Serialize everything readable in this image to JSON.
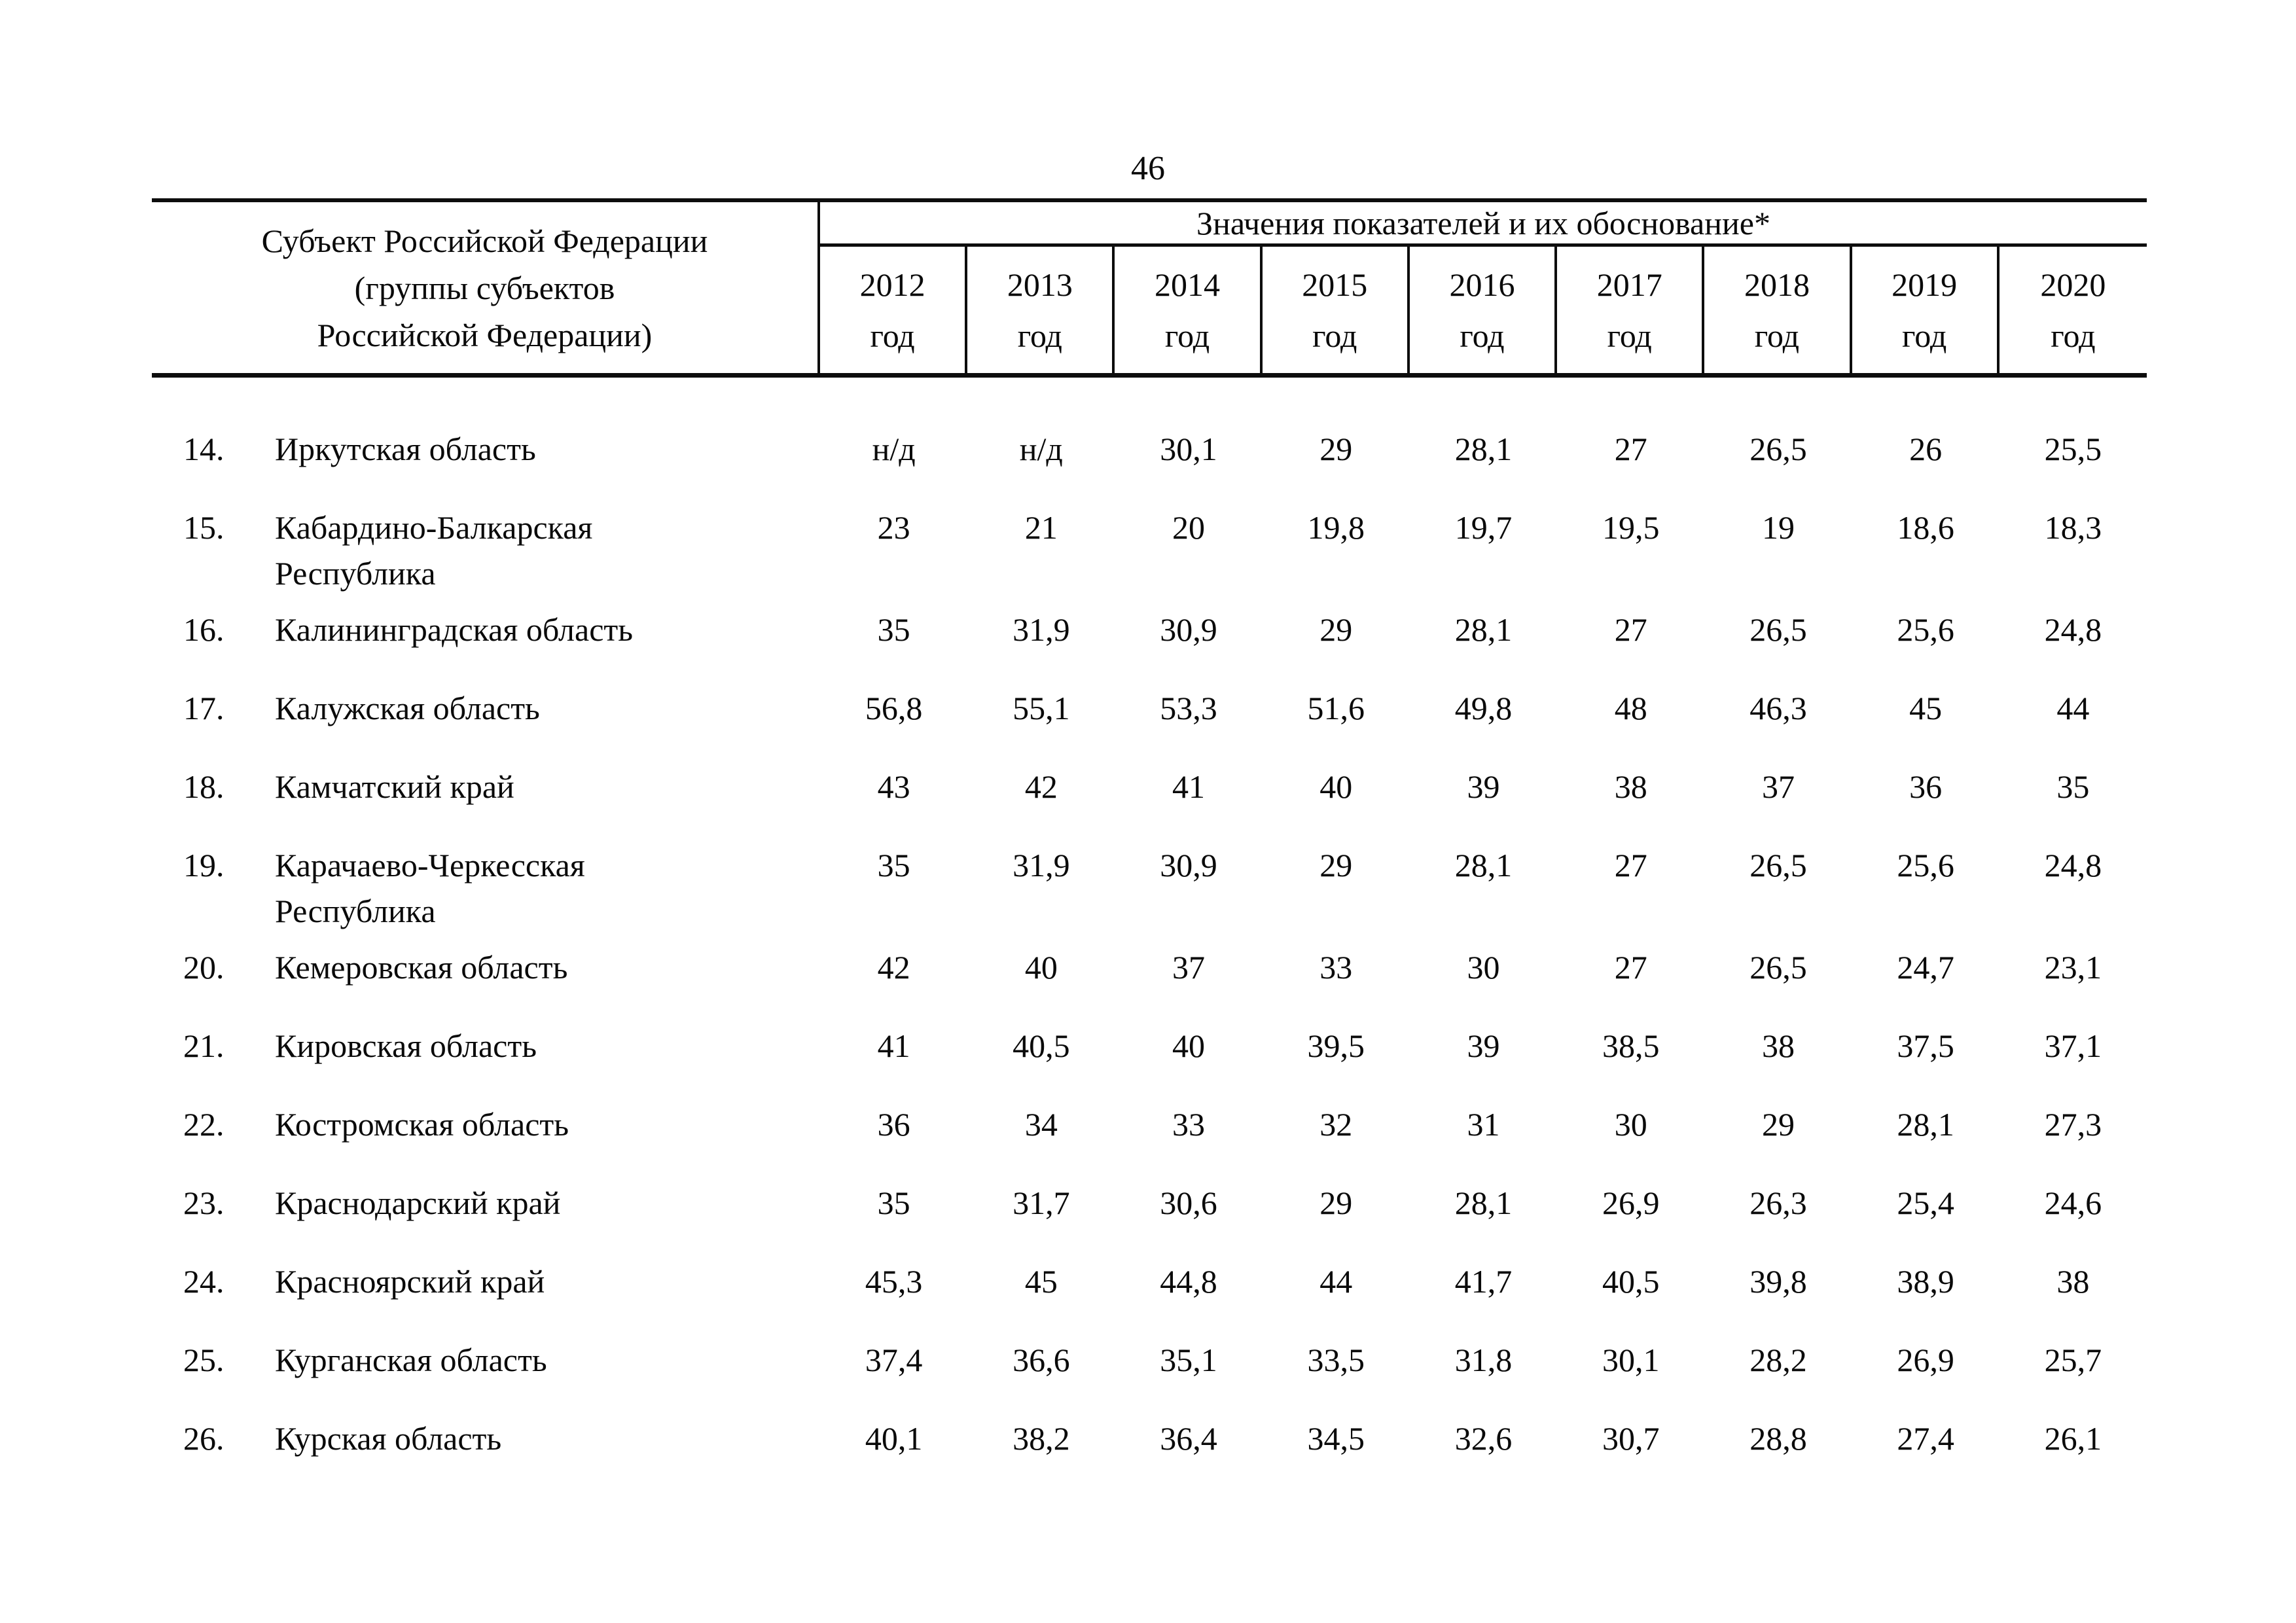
{
  "page": {
    "number": "46"
  },
  "table": {
    "subject_header_lines": [
      "Субъект Российской Федерации",
      "(группы субъектов",
      "Российской Федерации)"
    ],
    "values_header": "Значения показателей и их обоснование*",
    "columns": [
      {
        "year": "2012",
        "unit": "год"
      },
      {
        "year": "2013",
        "unit": "год"
      },
      {
        "year": "2014",
        "unit": "год"
      },
      {
        "year": "2015",
        "unit": "год"
      },
      {
        "year": "2016",
        "unit": "год"
      },
      {
        "year": "2017",
        "unit": "год"
      },
      {
        "year": "2018",
        "unit": "год"
      },
      {
        "year": "2019",
        "unit": "год"
      },
      {
        "year": "2020",
        "unit": "год"
      }
    ],
    "rows": [
      {
        "num": "14.",
        "name_lines": [
          "Иркутская область"
        ],
        "values": [
          "н/д",
          "н/д",
          "30,1",
          "29",
          "28,1",
          "27",
          "26,5",
          "26",
          "25,5"
        ]
      },
      {
        "num": "15.",
        "name_lines": [
          "Кабардино-Балкарская",
          "Республика"
        ],
        "values": [
          "23",
          "21",
          "20",
          "19,8",
          "19,7",
          "19,5",
          "19",
          "18,6",
          "18,3"
        ]
      },
      {
        "num": "16.",
        "name_lines": [
          "Калининградская область"
        ],
        "values": [
          "35",
          "31,9",
          "30,9",
          "29",
          "28,1",
          "27",
          "26,5",
          "25,6",
          "24,8"
        ]
      },
      {
        "num": "17.",
        "name_lines": [
          "Калужская область"
        ],
        "values": [
          "56,8",
          "55,1",
          "53,3",
          "51,6",
          "49,8",
          "48",
          "46,3",
          "45",
          "44"
        ]
      },
      {
        "num": "18.",
        "name_lines": [
          "Камчатский край"
        ],
        "values": [
          "43",
          "42",
          "41",
          "40",
          "39",
          "38",
          "37",
          "36",
          "35"
        ]
      },
      {
        "num": "19.",
        "name_lines": [
          "Карачаево-Черкесская",
          "Республика"
        ],
        "values": [
          "35",
          "31,9",
          "30,9",
          "29",
          "28,1",
          "27",
          "26,5",
          "25,6",
          "24,8"
        ]
      },
      {
        "num": "20.",
        "name_lines": [
          "Кемеровская область"
        ],
        "values": [
          "42",
          "40",
          "37",
          "33",
          "30",
          "27",
          "26,5",
          "24,7",
          "23,1"
        ]
      },
      {
        "num": "21.",
        "name_lines": [
          "Кировская область"
        ],
        "values": [
          "41",
          "40,5",
          "40",
          "39,5",
          "39",
          "38,5",
          "38",
          "37,5",
          "37,1"
        ]
      },
      {
        "num": "22.",
        "name_lines": [
          "Костромская область"
        ],
        "values": [
          "36",
          "34",
          "33",
          "32",
          "31",
          "30",
          "29",
          "28,1",
          "27,3"
        ]
      },
      {
        "num": "23.",
        "name_lines": [
          "Краснодарский край"
        ],
        "values": [
          "35",
          "31,7",
          "30,6",
          "29",
          "28,1",
          "26,9",
          "26,3",
          "25,4",
          "24,6"
        ]
      },
      {
        "num": "24.",
        "name_lines": [
          "Красноярский край"
        ],
        "values": [
          "45,3",
          "45",
          "44,8",
          "44",
          "41,7",
          "40,5",
          "39,8",
          "38,9",
          "38"
        ]
      },
      {
        "num": "25.",
        "name_lines": [
          "Курганская область"
        ],
        "values": [
          "37,4",
          "36,6",
          "35,1",
          "33,5",
          "31,8",
          "30,1",
          "28,2",
          "26,9",
          "25,7"
        ]
      },
      {
        "num": "26.",
        "name_lines": [
          "Курская область"
        ],
        "values": [
          "40,1",
          "38,2",
          "36,4",
          "34,5",
          "32,6",
          "30,7",
          "28,8",
          "27,4",
          "26,1"
        ]
      }
    ]
  }
}
